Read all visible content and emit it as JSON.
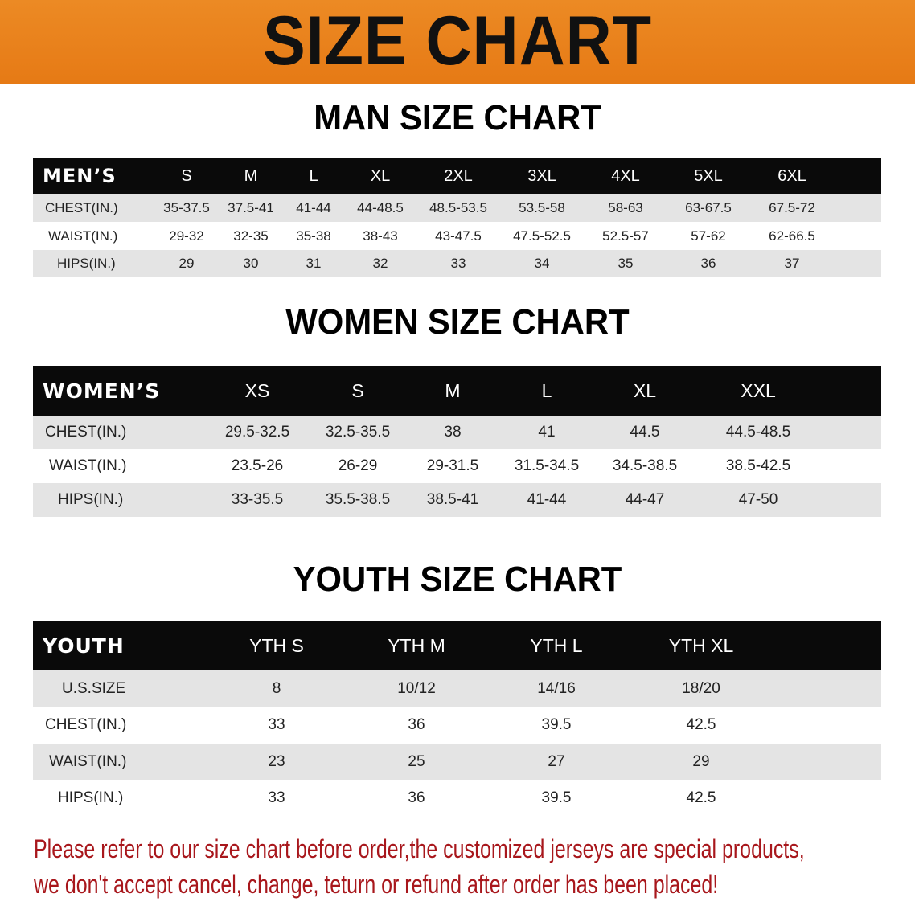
{
  "banner": {
    "title": "SIZE CHART",
    "color": "#e8801c"
  },
  "men": {
    "title": "MAN SIZE CHART",
    "header": "MEN’S",
    "sizes": [
      "S",
      "M",
      "L",
      "XL",
      "2XL",
      "3XL",
      "4XL",
      "5XL",
      "6XL"
    ],
    "rows": [
      {
        "label": "CHEST(IN.)",
        "values": [
          "35-37.5",
          "37.5-41",
          "41-44",
          "44-48.5",
          "48.5-53.5",
          "53.5-58",
          "58-63",
          "63-67.5",
          "67.5-72"
        ]
      },
      {
        "label": "WAIST(IN.)",
        "values": [
          "29-32",
          "32-35",
          "35-38",
          "38-43",
          "43-47.5",
          "47.5-52.5",
          "52.5-57",
          "57-62",
          "62-66.5"
        ]
      },
      {
        "label": "HIPS(IN.)",
        "values": [
          "29",
          "30",
          "31",
          "32",
          "33",
          "34",
          "35",
          "36",
          "37"
        ]
      }
    ]
  },
  "women": {
    "title": "WOMEN SIZE CHART",
    "header": "WOMEN’S",
    "sizes": [
      "XS",
      "S",
      "M",
      "L",
      "XL",
      "XXL"
    ],
    "rows": [
      {
        "label": "CHEST(IN.)",
        "values": [
          "29.5-32.5",
          "32.5-35.5",
          "38",
          "41",
          "44.5",
          "44.5-48.5"
        ]
      },
      {
        "label": "WAIST(IN.)",
        "values": [
          "23.5-26",
          "26-29",
          "29-31.5",
          "31.5-34.5",
          "34.5-38.5",
          "38.5-42.5"
        ]
      },
      {
        "label": "HIPS(IN.)",
        "values": [
          "33-35.5",
          "35.5-38.5",
          "38.5-41",
          "41-44",
          "44-47",
          "47-50"
        ]
      }
    ]
  },
  "youth": {
    "title": "YOUTH SIZE CHART",
    "header": "YOUTH",
    "sizes": [
      "YTH S",
      "YTH M",
      "YTH L",
      "YTH XL"
    ],
    "rows": [
      {
        "label": "U.S.SIZE",
        "values": [
          "8",
          "10/12",
          "14/16",
          "18/20"
        ]
      },
      {
        "label": "CHEST(IN.)",
        "values": [
          "33",
          "36",
          "39.5",
          "42.5"
        ]
      },
      {
        "label": "WAIST(IN.)",
        "values": [
          "23",
          "25",
          "27",
          "29"
        ]
      },
      {
        "label": "HIPS(IN.)",
        "values": [
          "33",
          "36",
          "39.5",
          "42.5"
        ]
      }
    ]
  },
  "note": {
    "line1": "Please refer to our size chart before order,the customized jerseys are special products,",
    "line2": "we don't accept cancel, change, teturn or refund after order has been placed!",
    "color": "#a8171c"
  }
}
